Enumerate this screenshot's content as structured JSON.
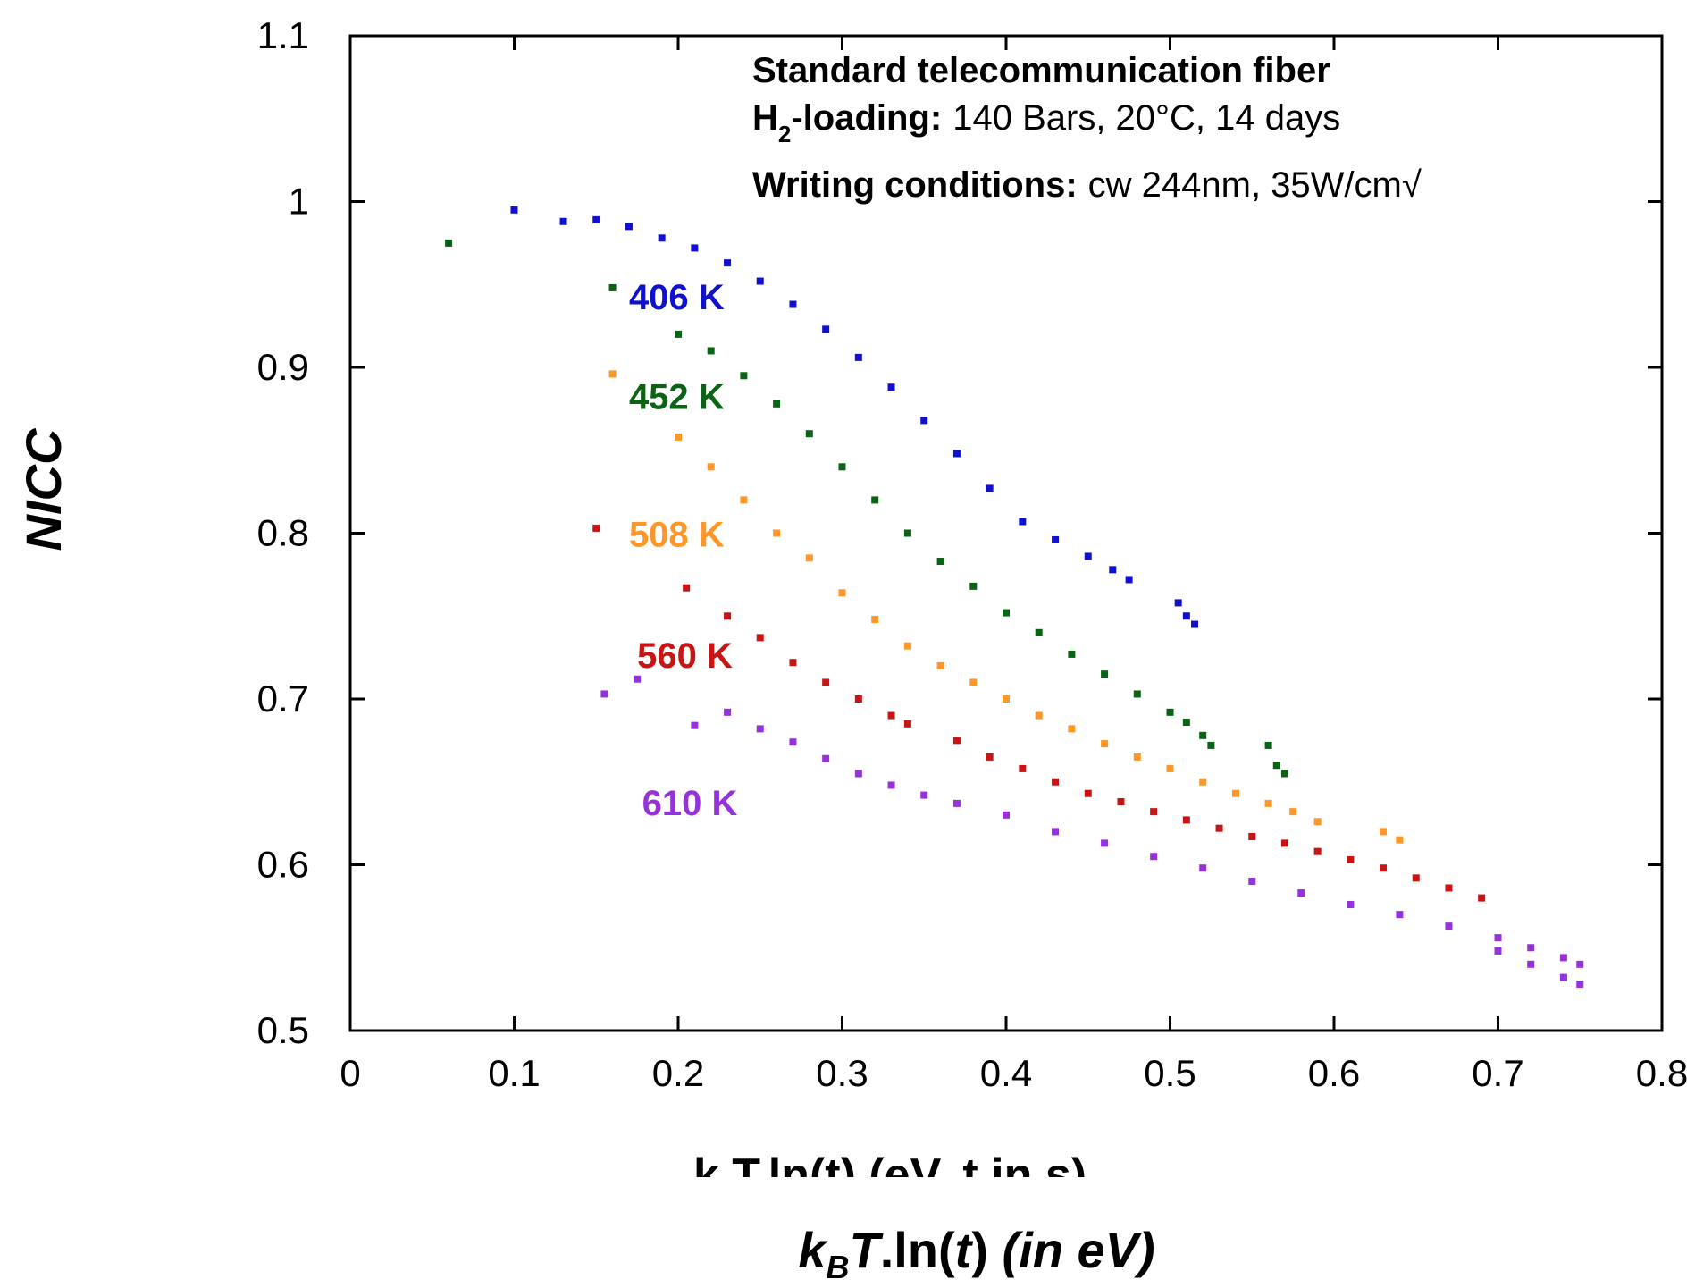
{
  "chart_data": {
    "type": "scatter",
    "title": "",
    "annotation": {
      "line1": "Standard telecommunication fiber",
      "line2_bold": "H2-loading:",
      "line2_bold_main": "H",
      "line2_bold_sub": "2",
      "line2_bold_rest": "-loading:",
      "line2_rest": "140 Bars, 20°C, 14 days",
      "line3_bold": "Writing conditions:",
      "line3_rest": "cw 244nm, 35W/cm√"
    },
    "ylabel": "NICC",
    "xlabel_clipped": "k T.ln(t) (eV, t in s)",
    "xlabel": {
      "k": "k",
      "sub": "B",
      "T": "T",
      "mid": ".ln(",
      "t": "t",
      "close": ")",
      "tail": " (in eV)"
    },
    "xlim": [
      0,
      0.8
    ],
    "ylim": [
      0.5,
      1.1
    ],
    "xticks": [
      "0",
      "0.1",
      "0.2",
      "0.3",
      "0.4",
      "0.5",
      "0.6",
      "0.7",
      "0.8"
    ],
    "yticks": [
      "0.5",
      "0.6",
      "0.7",
      "0.8",
      "0.9",
      "1",
      "1.1"
    ],
    "series": [
      {
        "name": "406 K",
        "color": "#1010d0",
        "label_at": [
          0.17,
          0.935
        ],
        "points": [
          [
            0.1,
            0.995
          ],
          [
            0.13,
            0.988
          ],
          [
            0.15,
            0.989
          ],
          [
            0.17,
            0.985
          ],
          [
            0.19,
            0.978
          ],
          [
            0.21,
            0.972
          ],
          [
            0.23,
            0.963
          ],
          [
            0.25,
            0.952
          ],
          [
            0.27,
            0.938
          ],
          [
            0.29,
            0.923
          ],
          [
            0.31,
            0.906
          ],
          [
            0.33,
            0.888
          ],
          [
            0.35,
            0.868
          ],
          [
            0.37,
            0.848
          ],
          [
            0.39,
            0.827
          ],
          [
            0.41,
            0.807
          ],
          [
            0.43,
            0.796
          ],
          [
            0.45,
            0.786
          ],
          [
            0.465,
            0.778
          ],
          [
            0.475,
            0.772
          ],
          [
            0.505,
            0.758
          ],
          [
            0.51,
            0.75
          ],
          [
            0.515,
            0.745
          ]
        ]
      },
      {
        "name": "452 K",
        "color": "#0a6414",
        "label_at": [
          0.17,
          0.875
        ],
        "points": [
          [
            0.06,
            0.975
          ],
          [
            0.16,
            0.948
          ],
          [
            0.2,
            0.92
          ],
          [
            0.22,
            0.91
          ],
          [
            0.24,
            0.895
          ],
          [
            0.26,
            0.878
          ],
          [
            0.28,
            0.86
          ],
          [
            0.3,
            0.84
          ],
          [
            0.32,
            0.82
          ],
          [
            0.34,
            0.8
          ],
          [
            0.36,
            0.783
          ],
          [
            0.38,
            0.768
          ],
          [
            0.4,
            0.752
          ],
          [
            0.42,
            0.74
          ],
          [
            0.44,
            0.727
          ],
          [
            0.46,
            0.715
          ],
          [
            0.48,
            0.703
          ],
          [
            0.5,
            0.692
          ],
          [
            0.51,
            0.686
          ],
          [
            0.52,
            0.678
          ],
          [
            0.525,
            0.672
          ],
          [
            0.56,
            0.672
          ],
          [
            0.565,
            0.66
          ],
          [
            0.57,
            0.655
          ]
        ]
      },
      {
        "name": "508 K",
        "color": "#ff9628",
        "label_at": [
          0.17,
          0.792
        ],
        "points": [
          [
            0.16,
            0.896
          ],
          [
            0.2,
            0.858
          ],
          [
            0.22,
            0.84
          ],
          [
            0.24,
            0.82
          ],
          [
            0.26,
            0.8
          ],
          [
            0.28,
            0.785
          ],
          [
            0.3,
            0.764
          ],
          [
            0.32,
            0.748
          ],
          [
            0.34,
            0.732
          ],
          [
            0.36,
            0.72
          ],
          [
            0.38,
            0.71
          ],
          [
            0.4,
            0.7
          ],
          [
            0.42,
            0.69
          ],
          [
            0.44,
            0.682
          ],
          [
            0.46,
            0.673
          ],
          [
            0.48,
            0.665
          ],
          [
            0.5,
            0.658
          ],
          [
            0.52,
            0.65
          ],
          [
            0.54,
            0.643
          ],
          [
            0.56,
            0.637
          ],
          [
            0.575,
            0.632
          ],
          [
            0.59,
            0.626
          ],
          [
            0.63,
            0.62
          ],
          [
            0.64,
            0.615
          ]
        ]
      },
      {
        "name": "560 K",
        "color": "#c81414",
        "label_at": [
          0.175,
          0.719
        ],
        "points": [
          [
            0.15,
            0.803
          ],
          [
            0.205,
            0.767
          ],
          [
            0.23,
            0.75
          ],
          [
            0.25,
            0.737
          ],
          [
            0.27,
            0.722
          ],
          [
            0.29,
            0.71
          ],
          [
            0.31,
            0.7
          ],
          [
            0.33,
            0.69
          ],
          [
            0.34,
            0.685
          ],
          [
            0.37,
            0.675
          ],
          [
            0.39,
            0.665
          ],
          [
            0.41,
            0.658
          ],
          [
            0.43,
            0.65
          ],
          [
            0.45,
            0.643
          ],
          [
            0.47,
            0.638
          ],
          [
            0.49,
            0.632
          ],
          [
            0.51,
            0.627
          ],
          [
            0.53,
            0.622
          ],
          [
            0.55,
            0.617
          ],
          [
            0.57,
            0.613
          ],
          [
            0.59,
            0.608
          ],
          [
            0.61,
            0.603
          ],
          [
            0.63,
            0.598
          ],
          [
            0.65,
            0.592
          ],
          [
            0.67,
            0.586
          ],
          [
            0.69,
            0.58
          ]
        ]
      },
      {
        "name": "610 K",
        "color": "#9632dc",
        "label_at": [
          0.178,
          0.63
        ],
        "points": [
          [
            0.155,
            0.703
          ],
          [
            0.175,
            0.712
          ],
          [
            0.21,
            0.684
          ],
          [
            0.23,
            0.692
          ],
          [
            0.25,
            0.682
          ],
          [
            0.27,
            0.674
          ],
          [
            0.29,
            0.664
          ],
          [
            0.31,
            0.655
          ],
          [
            0.33,
            0.648
          ],
          [
            0.35,
            0.642
          ],
          [
            0.37,
            0.637
          ],
          [
            0.4,
            0.63
          ],
          [
            0.43,
            0.62
          ],
          [
            0.46,
            0.613
          ],
          [
            0.49,
            0.605
          ],
          [
            0.52,
            0.598
          ],
          [
            0.55,
            0.59
          ],
          [
            0.58,
            0.583
          ],
          [
            0.61,
            0.576
          ],
          [
            0.64,
            0.57
          ],
          [
            0.67,
            0.563
          ],
          [
            0.7,
            0.556
          ],
          [
            0.72,
            0.55
          ],
          [
            0.74,
            0.544
          ],
          [
            0.75,
            0.54
          ],
          [
            0.7,
            0.548
          ],
          [
            0.72,
            0.54
          ],
          [
            0.74,
            0.532
          ],
          [
            0.75,
            0.528
          ]
        ]
      }
    ]
  }
}
